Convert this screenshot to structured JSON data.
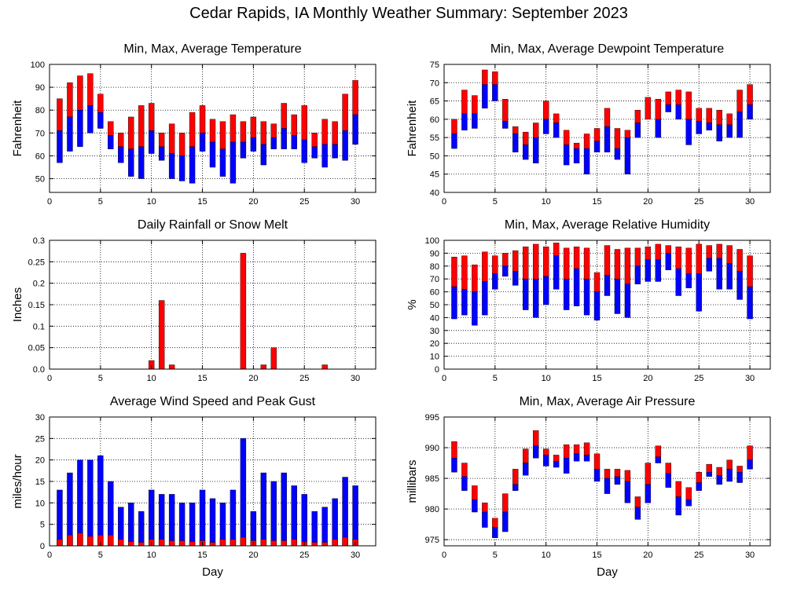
{
  "title": "Cedar Rapids, IA Monthly Weather Summary: September 2023",
  "colors": {
    "upper": "#ff0000",
    "lower": "#0000ff"
  },
  "chart_data": [
    {
      "id": "temperature",
      "type": "bar",
      "title": "Min, Max, Average Temperature",
      "xlabel": "",
      "ylabel": "Fahrenheit",
      "xlim": [
        0,
        32
      ],
      "ylim": [
        44,
        100
      ],
      "xticks": [
        0,
        5,
        10,
        15,
        20,
        25,
        30
      ],
      "yticks": [
        50,
        60,
        70,
        80,
        90,
        100
      ],
      "grid": true,
      "legend": "none",
      "x": [
        1,
        2,
        3,
        4,
        5,
        6,
        7,
        8,
        9,
        10,
        11,
        12,
        13,
        14,
        15,
        16,
        17,
        18,
        19,
        20,
        21,
        22,
        23,
        24,
        25,
        26,
        27,
        28,
        29,
        30
      ],
      "series": [
        {
          "role": "max",
          "values": [
            85,
            92,
            95,
            96,
            87,
            75,
            70,
            77,
            82,
            83,
            70,
            74,
            70,
            79,
            82,
            76,
            75,
            78,
            75,
            77,
            75,
            74,
            83,
            78,
            82,
            70,
            76,
            75,
            87,
            93
          ]
        },
        {
          "role": "avg",
          "values": [
            71,
            77,
            80,
            82,
            79,
            69,
            64,
            63,
            64,
            71,
            64,
            61,
            60,
            64,
            70,
            66,
            63,
            66,
            66,
            68,
            65,
            68,
            72,
            69,
            67,
            64,
            65,
            65,
            71,
            78
          ]
        },
        {
          "role": "min",
          "values": [
            57,
            62,
            64,
            70,
            72,
            63,
            57,
            51,
            50,
            61,
            58,
            50,
            49,
            48,
            62,
            55,
            51,
            48,
            59,
            62,
            56,
            63,
            63,
            63,
            57,
            59,
            55,
            59,
            58,
            65
          ]
        }
      ]
    },
    {
      "id": "dewpoint",
      "type": "bar",
      "title": "Min, Max, Average Dewpoint Temperature",
      "xlabel": "",
      "ylabel": "Fahrenheit",
      "xlim": [
        0,
        32
      ],
      "ylim": [
        40,
        75
      ],
      "xticks": [
        0,
        5,
        10,
        15,
        20,
        25,
        30
      ],
      "yticks": [
        40,
        45,
        50,
        55,
        60,
        65,
        70,
        75
      ],
      "grid": true,
      "legend": "none",
      "x": [
        1,
        2,
        3,
        4,
        5,
        6,
        7,
        8,
        9,
        10,
        11,
        12,
        13,
        14,
        15,
        16,
        17,
        18,
        19,
        20,
        21,
        22,
        23,
        24,
        25,
        26,
        27,
        28,
        29,
        30
      ],
      "series": [
        {
          "role": "max",
          "values": [
            60,
            68,
            66.5,
            73.5,
            73,
            65.5,
            58,
            56.5,
            59,
            65,
            61.5,
            57,
            53.5,
            56,
            57.5,
            63,
            57.5,
            57,
            62.5,
            66,
            65.5,
            67.5,
            68,
            67.5,
            63,
            63,
            62.5,
            61.5,
            68,
            69.5
          ]
        },
        {
          "role": "avg",
          "values": [
            56,
            61.5,
            61.5,
            69.5,
            69.5,
            59.5,
            56,
            53,
            55,
            60,
            59,
            53,
            52,
            52,
            54,
            58,
            52,
            55,
            59,
            60,
            60,
            64,
            64,
            60,
            59.5,
            59,
            58.5,
            58.5,
            62,
            64
          ]
        },
        {
          "role": "min",
          "values": [
            52,
            57,
            57.5,
            63,
            65,
            57.5,
            51,
            49,
            48,
            56,
            55,
            47.5,
            48,
            45,
            51,
            51,
            49,
            45,
            55,
            61,
            55,
            62,
            60,
            53,
            56,
            57,
            54,
            55,
            55,
            60
          ]
        }
      ]
    },
    {
      "id": "rainfall",
      "type": "bar",
      "title": "Daily Rainfall or Snow Melt",
      "xlabel": "",
      "ylabel": "Inches",
      "xlim": [
        0,
        32
      ],
      "ylim": [
        0,
        0.3
      ],
      "xticks": [
        0,
        5,
        10,
        15,
        20,
        25,
        30
      ],
      "yticks": [
        0,
        0.05,
        0.1,
        0.15,
        0.2,
        0.25,
        0.3
      ],
      "ytick_labels": [
        "0.0",
        "0.05",
        "0.1",
        "0.15",
        "0.2",
        "0.25",
        "0.3"
      ],
      "grid": true,
      "legend": "none",
      "x": [
        10,
        11,
        12,
        19,
        21,
        22,
        27
      ],
      "values": [
        0.02,
        0.16,
        0.01,
        0.27,
        0.01,
        0.05,
        0.01
      ]
    },
    {
      "id": "humidity",
      "type": "bar",
      "title": "Min, Max, Average Relative Humidity",
      "xlabel": "",
      "ylabel": "%",
      "xlim": [
        0,
        32
      ],
      "ylim": [
        0,
        100
      ],
      "xticks": [
        0,
        5,
        10,
        15,
        20,
        25,
        30
      ],
      "yticks": [
        0,
        10,
        20,
        30,
        40,
        50,
        60,
        70,
        80,
        90,
        100
      ],
      "grid": true,
      "legend": "none",
      "x": [
        1,
        2,
        3,
        4,
        5,
        6,
        7,
        8,
        9,
        10,
        11,
        12,
        13,
        14,
        15,
        16,
        17,
        18,
        19,
        20,
        21,
        22,
        23,
        24,
        25,
        26,
        27,
        28,
        29,
        30
      ],
      "series": [
        {
          "role": "max",
          "values": [
            87,
            88,
            81,
            91,
            88,
            90,
            92,
            95,
            97,
            95,
            98,
            94,
            95,
            94,
            75,
            96,
            93,
            94,
            94,
            95,
            97,
            96,
            95,
            94,
            97,
            96,
            97,
            96,
            93,
            88
          ]
        },
        {
          "role": "avg",
          "values": [
            64,
            62,
            60,
            68,
            74,
            80,
            76,
            70,
            70,
            72,
            88,
            70,
            78,
            70,
            60,
            73,
            70,
            66,
            80,
            85,
            85,
            90,
            78,
            74,
            74,
            86,
            86,
            82,
            76,
            64
          ]
        },
        {
          "role": "min",
          "values": [
            39,
            42,
            34,
            42,
            62,
            72,
            65,
            46,
            40,
            50,
            62,
            46,
            49,
            42,
            38,
            57,
            43,
            40,
            66,
            68,
            68,
            77,
            57,
            63,
            45,
            76,
            62,
            62,
            54,
            39
          ]
        }
      ]
    },
    {
      "id": "wind",
      "type": "bar",
      "title": "Average Wind Speed and Peak Gust",
      "xlabel": "Day",
      "ylabel": "miles/hour",
      "xlim": [
        0,
        32
      ],
      "ylim": [
        0,
        30
      ],
      "xticks": [
        0,
        5,
        10,
        15,
        20,
        25,
        30
      ],
      "yticks": [
        0,
        5,
        10,
        15,
        20,
        25,
        30
      ],
      "grid": true,
      "legend": "none",
      "x": [
        1,
        2,
        3,
        4,
        5,
        6,
        7,
        8,
        9,
        10,
        11,
        12,
        13,
        14,
        15,
        16,
        17,
        18,
        19,
        20,
        21,
        22,
        23,
        24,
        25,
        26,
        27,
        28,
        29,
        30
      ],
      "series": [
        {
          "role": "peak_gust",
          "values": [
            13,
            17,
            20,
            20,
            21,
            15,
            9,
            10,
            8,
            13,
            12,
            12,
            10,
            10,
            13,
            11,
            10,
            13,
            25,
            8,
            17,
            15,
            17,
            14,
            12,
            8,
            9,
            11,
            16,
            14
          ]
        },
        {
          "role": "avg_speed",
          "values": [
            1.5,
            2.5,
            3,
            2.2,
            2.5,
            2.5,
            1.5,
            1,
            0.8,
            1.5,
            1.5,
            1.2,
            1.2,
            1,
            1.2,
            0.8,
            1.5,
            1.5,
            2,
            1.2,
            1.5,
            1.2,
            1.2,
            1.5,
            1,
            0.8,
            0.8,
            1.5,
            2,
            1.5
          ]
        }
      ]
    },
    {
      "id": "pressure",
      "type": "bar",
      "title": "Min, Max, Average Air Pressure",
      "xlabel": "Day",
      "ylabel": "millibars",
      "xlim": [
        0,
        32
      ],
      "ylim": [
        974,
        995
      ],
      "xticks": [
        0,
        5,
        10,
        15,
        20,
        25,
        30
      ],
      "yticks": [
        975,
        980,
        985,
        990,
        995
      ],
      "grid": true,
      "legend": "none",
      "x": [
        1,
        2,
        3,
        4,
        5,
        6,
        7,
        8,
        9,
        10,
        11,
        12,
        13,
        14,
        15,
        16,
        17,
        18,
        19,
        20,
        21,
        22,
        23,
        24,
        25,
        26,
        27,
        28,
        29,
        30
      ],
      "series": [
        {
          "role": "max",
          "values": [
            991,
            987.5,
            983.8,
            981,
            978.5,
            982.5,
            986.5,
            989.8,
            992.8,
            989.8,
            988.8,
            990.5,
            990.5,
            990.8,
            989,
            986.5,
            986.5,
            986.3,
            982,
            987.5,
            990.3,
            987.5,
            984.5,
            983.5,
            986,
            987.3,
            986.8,
            988,
            987,
            990.3
          ]
        },
        {
          "role": "avg",
          "values": [
            988.3,
            985.3,
            981.5,
            979.5,
            977,
            979.5,
            984,
            987.5,
            990.3,
            988.8,
            987.8,
            988.3,
            989,
            988.8,
            986.5,
            985,
            985.3,
            984.5,
            980.3,
            984,
            988.5,
            985.8,
            982,
            981.5,
            984.3,
            986,
            985.5,
            986.5,
            986,
            988
          ]
        },
        {
          "role": "min",
          "values": [
            986,
            983,
            979.5,
            977,
            975.3,
            976.3,
            983,
            985.5,
            988.3,
            987,
            986.8,
            985.8,
            987.8,
            987.8,
            984.5,
            982.5,
            984,
            981,
            978.3,
            981,
            987.5,
            983.5,
            979,
            980.5,
            983,
            985.3,
            984,
            984.5,
            984.3,
            986.5
          ]
        }
      ]
    }
  ]
}
